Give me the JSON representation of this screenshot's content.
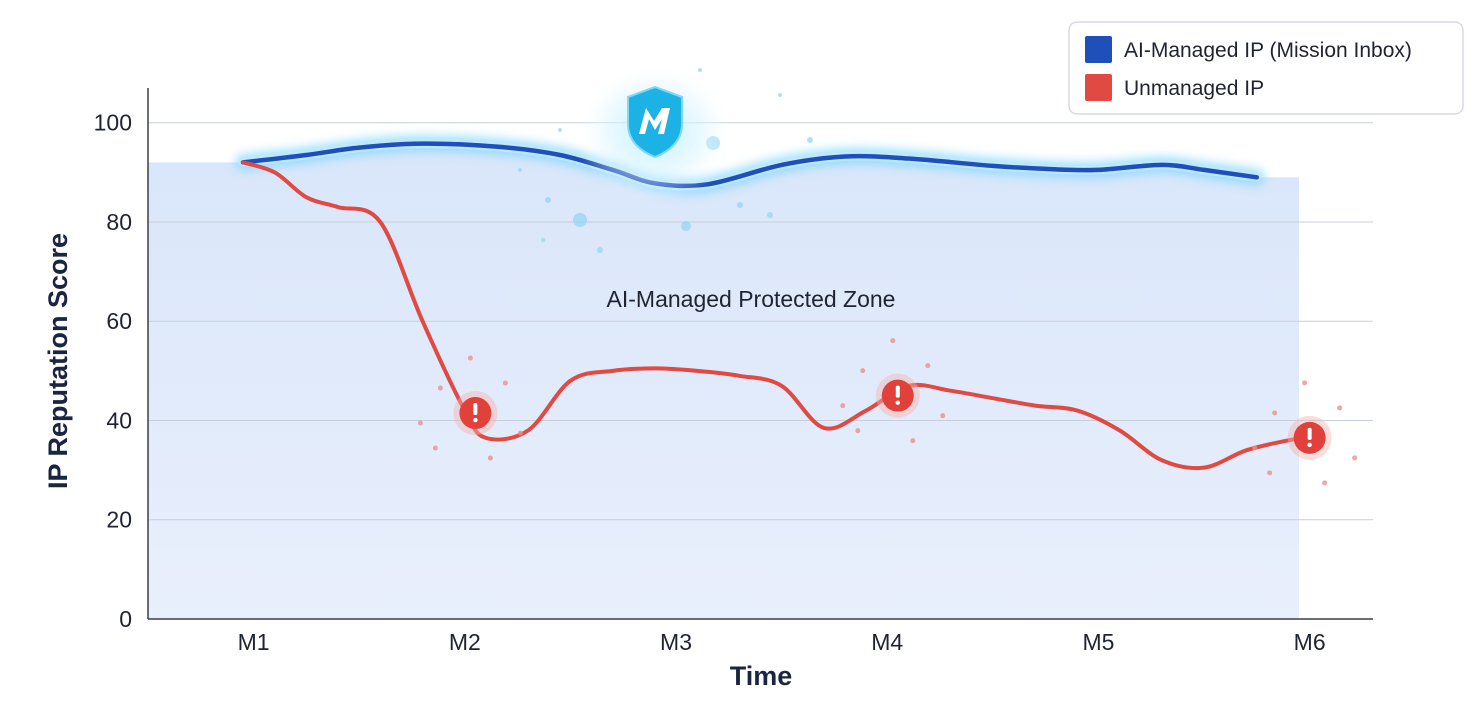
{
  "chart_data": {
    "type": "line",
    "xlabel": "Time",
    "ylabel": "IP Reputation Score",
    "ylim": [
      0,
      107
    ],
    "yticks": [
      0,
      20,
      40,
      60,
      80,
      100
    ],
    "categories": [
      "M1",
      "M2",
      "M3",
      "M4",
      "M5",
      "M6"
    ],
    "grid": true,
    "legend_position": "top-right",
    "annotation": "AI-Managed Protected Zone",
    "series": [
      {
        "name": "AI-Managed IP (Mission Inbox)",
        "color": "#1f4fb8",
        "x": [
          0.45,
          0.75,
          1.0,
          1.3,
          1.65,
          1.95,
          2.2,
          2.4,
          2.65,
          3.0,
          3.3,
          3.6,
          4.0,
          4.3,
          4.5,
          4.8,
          5.0,
          5.25
        ],
        "values": [
          92,
          93.5,
          95,
          95.8,
          95.2,
          93.5,
          90.5,
          87.8,
          87.6,
          91.5,
          93.2,
          92.8,
          91.3,
          90.6,
          90.5,
          91.5,
          90.5,
          89
        ]
      },
      {
        "name": "Unmanaged IP",
        "color": "#e04a43",
        "x": [
          0.45,
          0.6,
          0.75,
          0.9,
          1.1,
          1.3,
          1.5,
          1.6,
          1.8,
          2.0,
          2.2,
          2.4,
          2.6,
          2.8,
          3.0,
          3.2,
          3.4,
          3.6,
          3.8,
          4.0,
          4.2,
          4.4,
          4.6,
          4.8,
          5.0,
          5.2,
          5.4,
          5.5
        ],
        "values": [
          92,
          90,
          85,
          83,
          80,
          60,
          42,
          36.5,
          38,
          48,
          50,
          50.5,
          50,
          49,
          47,
          38.5,
          42,
          47,
          46,
          44.5,
          43,
          42,
          38,
          32,
          30.5,
          34,
          36,
          36.5
        ]
      }
    ],
    "alerts": [
      {
        "x": 1.55,
        "y": 41.5
      },
      {
        "x": 3.55,
        "y": 45
      },
      {
        "x": 5.5,
        "y": 36.5
      }
    ]
  }
}
